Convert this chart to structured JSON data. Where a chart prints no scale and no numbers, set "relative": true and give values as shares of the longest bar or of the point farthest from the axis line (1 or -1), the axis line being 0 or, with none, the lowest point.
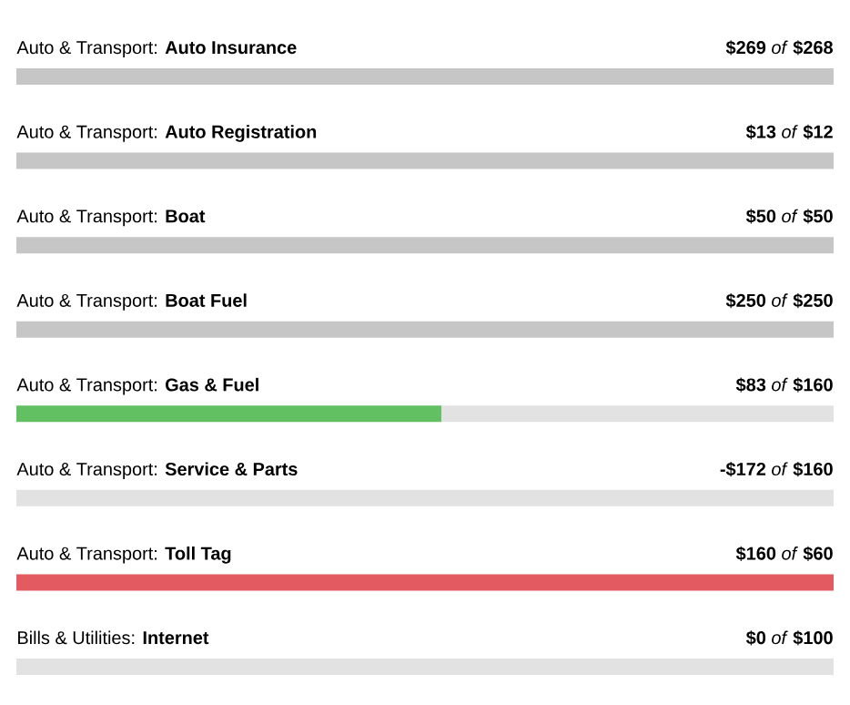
{
  "chart_data": {
    "type": "bar",
    "orientation": "horizontal",
    "relative": true,
    "stacked": true,
    "categories": [
      "Auto & Transport: **Auto Insurance**",
      "Auto & Transport: **Auto Registration**",
      "Auto & Transport: **Boat**",
      "Auto & Transport: **Boat Fuel**",
      "Auto & Transport: **Gas & Fuel**",
      "Auto & Transport: **Service & Parts**",
      "Auto & Transport: **Toll Tag**",
      "Bills & Utilities: **Internet**"
    ],
    "series": [
      {
        "colors": [
          "#c6c6c6",
          "#c6c6c6",
          "#c6c6c6",
          "#c6c6c6",
          "#62c062",
          "#e2e2e2",
          "#e35b60",
          "#e2e2e2"
        ],
        "values": [
          1,
          1,
          1,
          1,
          0.52,
          0,
          1,
          0
        ]
      },
      {
        "color": "#e2e2e2",
        "values": [
          0,
          0,
          0,
          0,
          0.48,
          1,
          0,
          1
        ]
      }
    ],
    "value_labels": [
      "**$269** *of* **$268**",
      "**$13** *of* **$12**",
      "**$50** *of* **$50**",
      "**$250** *of* **$250**",
      "**$83** *of* **$160**",
      "**-$172** *of* **$160**",
      "**$160** *of* **$60**",
      "**$0** *of* **$100**"
    ]
  }
}
